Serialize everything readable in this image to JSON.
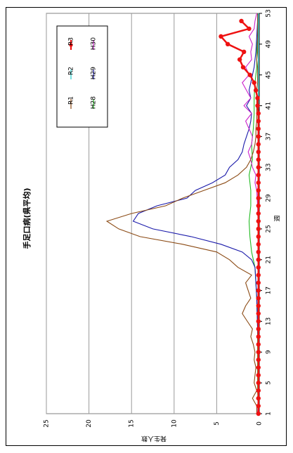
{
  "chart_data": {
    "type": "line",
    "title": "手足口病(県平均)",
    "xlabel": "週",
    "ylabel": "発生人数",
    "ylim": [
      0,
      25
    ],
    "yticks": [
      0,
      5,
      10,
      15,
      20,
      25
    ],
    "xlim": [
      1,
      53
    ],
    "xticks": [
      1,
      5,
      9,
      13,
      17,
      21,
      25,
      29,
      33,
      37,
      41,
      45,
      49,
      53
    ],
    "grid": "horizontal",
    "legend_position": "top-right",
    "orientation": "rotated",
    "series": [
      {
        "name": "H28",
        "color": "#22bb22",
        "x": [
          1,
          4,
          8,
          12,
          16,
          20,
          22,
          24,
          26,
          28,
          30,
          32,
          34,
          36,
          38,
          40,
          42,
          44,
          46,
          48,
          50,
          52,
          53
        ],
        "y": [
          0.1,
          0.2,
          0.2,
          0.2,
          0.3,
          0.5,
          0.9,
          1.1,
          1.2,
          1.0,
          1.0,
          1.2,
          0.8,
          0.9,
          0.7,
          0.6,
          0.6,
          0.5,
          0.3,
          0.3,
          0.2,
          0.2,
          0.2
        ]
      },
      {
        "name": "H29",
        "color": "#1a1aaa",
        "x": [
          1,
          4,
          8,
          12,
          16,
          18,
          20,
          21,
          22,
          23,
          24,
          25,
          26,
          27,
          28,
          29,
          30,
          31,
          32,
          33,
          34,
          35,
          36,
          37,
          38,
          39,
          40,
          41,
          42,
          43,
          44,
          45,
          46,
          47,
          48,
          50,
          52,
          53
        ],
        "y": [
          0.1,
          0.1,
          0.1,
          0.2,
          0.3,
          0.4,
          0.5,
          0.9,
          2.0,
          4.5,
          8.0,
          12.5,
          14.8,
          14.2,
          12.0,
          8.5,
          7.5,
          5.5,
          4.0,
          3.5,
          2.5,
          2.0,
          1.8,
          1.5,
          1.2,
          1.0,
          0.9,
          1.5,
          1.0,
          1.2,
          1.0,
          0.8,
          0.6,
          0.5,
          0.4,
          0.3,
          0.2,
          0.2
        ]
      },
      {
        "name": "H30",
        "color": "#cc22cc",
        "x": [
          1,
          4,
          8,
          12,
          16,
          20,
          24,
          28,
          30,
          31,
          32,
          33,
          34,
          35,
          36,
          37,
          38,
          39,
          40,
          41,
          42,
          43,
          44,
          45,
          46,
          47,
          48,
          49,
          50,
          51,
          52,
          53
        ],
        "y": [
          0.2,
          0.1,
          0.1,
          0.1,
          0.1,
          0.1,
          0.1,
          0.2,
          0.3,
          0.5,
          0.4,
          0.8,
          1.0,
          1.3,
          0.9,
          0.8,
          1.2,
          1.6,
          0.9,
          1.8,
          1.0,
          1.5,
          2.0,
          1.2,
          1.6,
          0.9,
          1.0,
          0.8,
          1.2,
          0.6,
          0.5,
          0.3
        ]
      },
      {
        "name": "R1",
        "color": "#8b4a14",
        "x": [
          1,
          2,
          3,
          4,
          5,
          6,
          7,
          8,
          9,
          10,
          11,
          12,
          13,
          14,
          15,
          16,
          17,
          18,
          19,
          20,
          21,
          22,
          23,
          24,
          25,
          26,
          27,
          28,
          29,
          30,
          31,
          32,
          33,
          34,
          35,
          36,
          37,
          38,
          39,
          40,
          41,
          42,
          43,
          44,
          45,
          46,
          47,
          48,
          49,
          50,
          51,
          52,
          53
        ],
        "y": [
          0.3,
          0.3,
          0.8,
          0.3,
          0.6,
          0.5,
          0.4,
          0.6,
          0.5,
          0.7,
          1.0,
          0.8,
          1.4,
          2.0,
          1.6,
          1.0,
          1.3,
          1.6,
          0.9,
          2.5,
          3.5,
          5.0,
          9.0,
          14.0,
          16.5,
          17.9,
          15.0,
          11.0,
          9.0,
          6.5,
          4.0,
          2.5,
          1.5,
          1.0,
          0.7,
          0.5,
          0.4,
          0.4,
          0.3,
          0.3,
          0.3,
          0.3,
          0.3,
          0.2,
          0.2,
          0.2,
          0.3,
          0.2,
          0.2,
          0.2,
          0.2,
          0.2,
          0.2
        ]
      },
      {
        "name": "R2",
        "color": "#22cccc",
        "x": [
          1,
          4,
          8,
          12,
          16,
          20,
          24,
          28,
          32,
          36,
          40,
          44,
          48,
          52,
          53
        ],
        "y": [
          0.1,
          0.1,
          0.1,
          0.1,
          0.1,
          0.1,
          0.1,
          0.1,
          0.1,
          0.1,
          0.1,
          0.1,
          0.1,
          0.1,
          0.1
        ]
      },
      {
        "name": "R3",
        "color": "#ee1111",
        "markers": true,
        "x": [
          1,
          2,
          3,
          4,
          5,
          6,
          7,
          8,
          9,
          10,
          11,
          12,
          13,
          14,
          15,
          16,
          17,
          18,
          19,
          20,
          21,
          22,
          23,
          24,
          25,
          26,
          27,
          28,
          29,
          30,
          31,
          32,
          33,
          34,
          35,
          36,
          37,
          38,
          39,
          40,
          41,
          42,
          43,
          44,
          45,
          46,
          47,
          48,
          49,
          50,
          51,
          52
        ],
        "y": [
          0.1,
          0.1,
          0.1,
          0.1,
          0.1,
          0.1,
          0.1,
          0.1,
          0.1,
          0.1,
          0.1,
          0.1,
          0.1,
          0.1,
          0.1,
          0.1,
          0.1,
          0.1,
          0.1,
          0.1,
          0.1,
          0.1,
          0.1,
          0.1,
          0.1,
          0.1,
          0.1,
          0.1,
          0.1,
          0.1,
          0.1,
          0.1,
          0.1,
          0.1,
          0.1,
          0.1,
          0.1,
          0.1,
          0.1,
          0.1,
          0.2,
          0.2,
          0.4,
          0.6,
          1.1,
          1.9,
          2.3,
          1.8,
          3.7,
          4.5,
          1.2,
          2.1
        ]
      }
    ]
  }
}
